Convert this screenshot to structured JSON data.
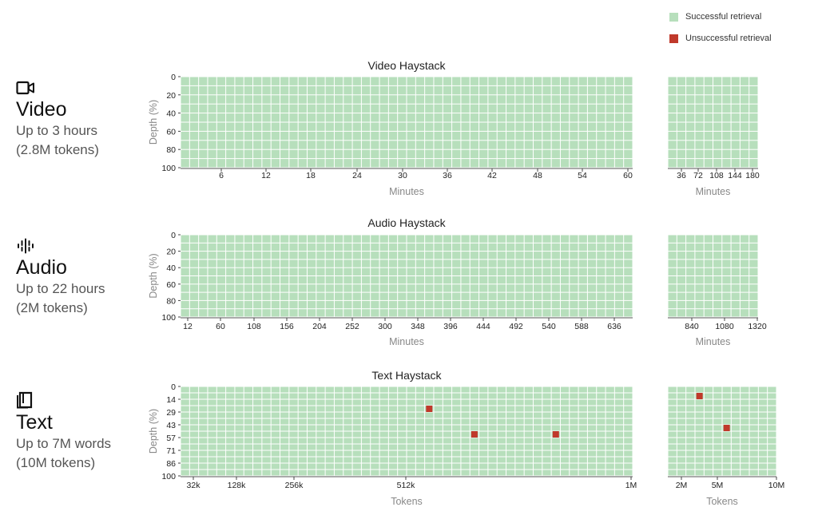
{
  "legend": {
    "success": "Successful retrieval",
    "failure": "Unsuccessful retrieval"
  },
  "colors": {
    "success": "#b7dfbc",
    "failure": "#c0392b",
    "grid": "#ffffff"
  },
  "modes": [
    {
      "icon": "video-camera-icon",
      "name": "Video",
      "line1": "Up to 3 hours",
      "line2": "(2.8M tokens)"
    },
    {
      "icon": "waveform-icon",
      "name": "Audio",
      "line1": "Up to 22 hours",
      "line2": "(2M tokens)"
    },
    {
      "icon": "book-icon",
      "name": "Text",
      "line1": "Up to 7M words",
      "line2": "(10M tokens)"
    }
  ],
  "chart_data": [
    {
      "type": "heatmap",
      "title": "Video Haystack",
      "ylabel": "Depth (%)",
      "ytick_labels": [
        "0",
        "20",
        "40",
        "60",
        "80",
        "100"
      ],
      "main": {
        "xlabel": "Minutes",
        "xtick_labels": [
          "6",
          "12",
          "18",
          "24",
          "30",
          "36",
          "42",
          "48",
          "54",
          "60"
        ],
        "xlim": [
          0,
          60
        ],
        "cols": 50,
        "rows": 10
      },
      "extended": {
        "xlabel": "Minutes",
        "xtick_labels": [
          "36",
          "72",
          "108",
          "144",
          "180"
        ],
        "xlim": [
          0,
          180
        ],
        "cols": 10,
        "rows": 10
      },
      "failures": []
    },
    {
      "type": "heatmap",
      "title": "Audio Haystack",
      "ylabel": "Depth (%)",
      "ytick_labels": [
        "0",
        "20",
        "40",
        "60",
        "80",
        "100"
      ],
      "main": {
        "xlabel": "Minutes",
        "xtick_labels": [
          "12",
          "60",
          "108",
          "156",
          "204",
          "252",
          "300",
          "348",
          "396",
          "444",
          "492",
          "540",
          "588",
          "636"
        ],
        "cols": 50,
        "rows": 10
      },
      "extended": {
        "xlabel": "Minutes",
        "xtick_labels": [
          "840",
          "1080",
          "1320"
        ],
        "cols": 10,
        "rows": 10
      },
      "failures": []
    },
    {
      "type": "heatmap",
      "title": "Text Haystack",
      "ylabel": "Depth (%)",
      "ytick_labels": [
        "0",
        "14",
        "29",
        "43",
        "57",
        "71",
        "86",
        "100"
      ],
      "main": {
        "xlabel": "Tokens",
        "xtick_labels": [
          "32k",
          "128k",
          "256k",
          "512k",
          "1M"
        ],
        "cols": 50,
        "rows": 14
      },
      "extended": {
        "xlabel": "Tokens",
        "xtick_labels": [
          "2M",
          "5M",
          "10M"
        ],
        "cols": 12,
        "rows": 14
      },
      "failures": [
        {
          "panel": "main",
          "col": 27,
          "row": 3
        },
        {
          "panel": "main",
          "col": 32,
          "row": 7
        },
        {
          "panel": "main",
          "col": 41,
          "row": 7
        },
        {
          "panel": "extended",
          "col": 3,
          "row": 1
        },
        {
          "panel": "extended",
          "col": 6,
          "row": 6
        }
      ]
    }
  ]
}
